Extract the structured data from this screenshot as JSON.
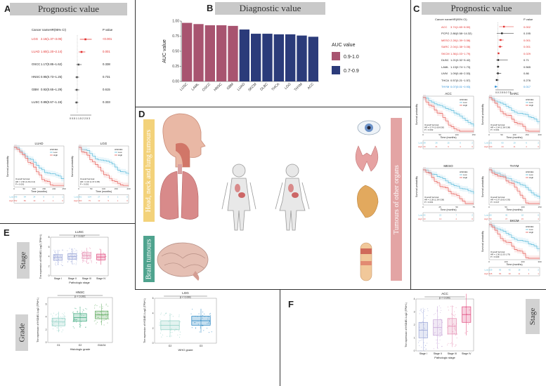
{
  "panels": {
    "a": {
      "letter": "A",
      "title": "Prognostic value"
    },
    "b": {
      "letter": "B",
      "title": "Diagnostic value"
    },
    "c": {
      "letter": "C",
      "title": "Prognostic value"
    },
    "d": {
      "letter": "D",
      "left_tag": "Head, neck and lung tumours",
      "brain_tag": "Brain tumours",
      "right_tag": "Tumours of other organs"
    },
    "e": {
      "letter": "E",
      "stage_tag": "Stage",
      "grade_tag": "Grade"
    },
    "f": {
      "letter": "F",
      "stage_tag": "Stage"
    }
  },
  "forest_a": {
    "col_name": "Cancer name",
    "col_hr": "HR(95% CI)",
    "col_p": "P value",
    "rows": [
      {
        "name": "LGG",
        "hr": "2.16(1.37~3.05)",
        "p": "<0.001",
        "sig": true
      },
      {
        "name": "LUAD",
        "hr": "1.60(1.20~2.14)",
        "p": "0.001",
        "sig": true
      },
      {
        "name": "OSCC",
        "hr": "1.17(0.85~1.62)",
        "p": "0.338",
        "sig": false
      },
      {
        "name": "HNSC",
        "hr": "0.95(0.73~1.25)",
        "p": "0.731",
        "sig": false
      },
      {
        "name": "GBM",
        "hr": "0.92(0.65~1.29)",
        "p": "0.615",
        "sig": false
      },
      {
        "name": "LUSC",
        "hr": "0.89(0.67~1.15)",
        "p": "0.333",
        "sig": false
      }
    ],
    "axis": "0 0.5 1 1.5 2 2.5 3"
  },
  "forest_c": {
    "col_name": "Cancer name",
    "col_hr": "HR(95% CI)",
    "col_p": "P value",
    "rows": [
      {
        "name": "ACC",
        "hr": "3.74(1.65~8.50)",
        "p": "0.002",
        "color": "red"
      },
      {
        "name": "PCPG",
        "hr": "2.86(0.58~14.32)",
        "p": "0.195",
        "color": "black"
      },
      {
        "name": "MESO",
        "hr": "2.28(1.39~3.58)",
        "p": "0.001",
        "color": "red"
      },
      {
        "name": "SARC",
        "hr": "2.04(1.38~3.08)",
        "p": "0.001",
        "color": "red"
      },
      {
        "name": "SKCM",
        "hr": "1.36(1.03~1.79)",
        "p": "0.029",
        "color": "red"
      },
      {
        "name": "DLBC",
        "hr": "1.21(0.32~5.42)",
        "p": "0.71",
        "color": "black"
      },
      {
        "name": "LAML",
        "hr": "1.13(0.74~1.73)",
        "p": "0.565",
        "color": "black"
      },
      {
        "name": "UVM",
        "hr": "1.09(0.46~2.53)",
        "p": "0.86",
        "color": "black"
      },
      {
        "name": "THCA",
        "hr": "0.57(0.21~1.57)",
        "p": "0.276",
        "color": "black"
      },
      {
        "name": "THYM",
        "hr": "0.07(0.01~0.93)",
        "p": "0.017",
        "color": "blue"
      }
    ],
    "axis": "0.0 2.5 5.0 7.5"
  },
  "km_plots": [
    {
      "id": "luad",
      "title": "LUAD",
      "ylab": "Survival probability",
      "xlab": "Time (months)",
      "legend_title": "HSD4E1",
      "low": "Low",
      "high": "High",
      "stats": "Overall Survival\nHR = 1.60 (1.20-2.14)\nP = 0.001",
      "risk_low": [
        "249",
        "94",
        "24",
        "9",
        "2",
        "1"
      ],
      "risk_high": [
        "252",
        "80",
        "13",
        "4",
        "1",
        "0"
      ],
      "xticks": [
        "0",
        "50",
        "100",
        "150",
        "200",
        "250"
      ]
    },
    {
      "id": "lgg",
      "title": "LGG",
      "ylab": "Survival probability",
      "xlab": "Time (months)",
      "legend_title": "HSD4E1",
      "low": "Low",
      "high": "High",
      "stats": "Overall Survival\nHR = 2.16 (1.37-3.05)\nP < 0.001",
      "risk_low": [
        "261",
        "104",
        "27",
        "8",
        "1",
        "0"
      ],
      "risk_high": [
        "260",
        "75",
        "12",
        "5",
        "1",
        "0"
      ],
      "xticks": [
        "0",
        "50",
        "100",
        "150",
        "200"
      ]
    },
    {
      "id": "acc",
      "title": "ACC",
      "ylab": "Survival probability",
      "xlab": "Time (months)",
      "legend_title": "HSD4E1",
      "low": "Low",
      "high": "High",
      "stats": "Overall Survival\nHR = 3.74 (1.65-8.50)\nP = 0.002",
      "risk_low": [
        "39",
        "26",
        "15",
        "6",
        "2"
      ],
      "risk_high": [
        "40",
        "21",
        "9",
        "3",
        "0"
      ],
      "xticks": [
        "0",
        "50",
        "100",
        "150"
      ]
    },
    {
      "id": "sarc",
      "title": "SARC",
      "ylab": "Survival probability",
      "xlab": "Time (months)",
      "legend_title": "HSD4E1",
      "low": "Low",
      "high": "High",
      "stats": "Overall Survival\nHR = 2.04 (1.38-3.08)\nP = 0.001",
      "risk_low": [
        "131",
        "60",
        "19",
        "6",
        "2"
      ],
      "risk_high": [
        "130",
        "44",
        "11",
        "4",
        "0"
      ],
      "xticks": [
        "0",
        "50",
        "100",
        "150",
        "200"
      ]
    },
    {
      "id": "meso",
      "title": "MESO",
      "ylab": "Survival probability",
      "xlab": "Time (months)",
      "legend_title": "HSD4E1",
      "low": "Low",
      "high": "High",
      "stats": "Overall Survival\nHR = 2.28 (1.39-3.58)\nP = 0.001",
      "risk_low": [
        "42",
        "22",
        "7",
        "2"
      ],
      "risk_high": [
        "43",
        "13",
        "2",
        "0"
      ],
      "xticks": [
        "0",
        "25",
        "50",
        "75"
      ]
    },
    {
      "id": "thym",
      "title": "THYM",
      "ylab": "Survival probability",
      "xlab": "Time (months)",
      "legend_title": "HSD4E1",
      "low": "Low",
      "high": "High",
      "stats": "Overall Survival\nHR = 0.07 (0.01-0.93)\nP = 0.017",
      "risk_low": [
        "60",
        "40",
        "18",
        "6"
      ],
      "risk_high": [
        "59",
        "37",
        "15",
        "4"
      ],
      "xticks": [
        "0",
        "50",
        "100",
        "150"
      ]
    },
    {
      "id": "skcm",
      "title": "SKCM",
      "ylab": "Survival probability",
      "xlab": "Time (months)",
      "legend_title": "HSD4E1",
      "low": "Low",
      "high": "High",
      "stats": "Overall Survival\nHR = 1.36 (1.03-1.79)\nP = 0.029",
      "risk_low": [
        "229",
        "95",
        "42",
        "18",
        "6",
        "2"
      ],
      "risk_high": [
        "228",
        "83",
        "30",
        "11",
        "3",
        "1"
      ],
      "xticks": [
        "0",
        "100",
        "200",
        "300"
      ]
    }
  ],
  "chart_data": [
    {
      "type": "bar",
      "title": "Diagnostic value",
      "ylabel": "AUC value",
      "xlabel": "",
      "ylim": [
        0,
        1.0
      ],
      "yticks": [
        "0.00",
        "0.25",
        "0.50",
        "0.75",
        "1.00"
      ],
      "categories": [
        "LUSC",
        "LAML",
        "OSCC",
        "HNSC",
        "GBM",
        "LUAD",
        "SKCM",
        "DLBC",
        "THCA",
        "LGG",
        "THYM",
        "ACC"
      ],
      "values": [
        0.97,
        0.95,
        0.93,
        0.93,
        0.92,
        0.86,
        0.79,
        0.79,
        0.78,
        0.78,
        0.76,
        0.74
      ],
      "legend_title": "AUC value",
      "legend": [
        {
          "label": "0.9-1.0",
          "color": "#a85470"
        },
        {
          "label": "0.7-0.9",
          "color": "#2b3b7a"
        }
      ],
      "legend_position": "right"
    },
    {
      "type": "box",
      "title": "LUSC",
      "annotation": "p = 0.027",
      "ylabel": "The expression of HSD4E1 Log2 (TPM+1)",
      "xlabel": "Pathologic stage",
      "categories": [
        "Stage I",
        "Stage II",
        "Stage III",
        "Stage IV"
      ],
      "medians": [
        3.8,
        4.0,
        4.2,
        3.9
      ],
      "colors": [
        "#9aa6d8",
        "#9aa6d8",
        "#e58bb0",
        "#e0457a"
      ],
      "ylim": [
        0,
        8
      ]
    },
    {
      "type": "box",
      "title": "HNSC",
      "annotation": "p < 0.001",
      "ylabel": "The expression of HSD4E1 Log2 (TPM+1)",
      "xlabel": "Histologic grade",
      "categories": [
        "G1",
        "G2",
        "G3&G4"
      ],
      "medians": [
        3.2,
        3.9,
        4.3
      ],
      "colors": [
        "#8fd0c4",
        "#3da87d",
        "#5aa85a"
      ],
      "ylim": [
        0,
        7
      ]
    },
    {
      "type": "box",
      "title": "LGG",
      "annotation": "p < 0.001",
      "ylabel": "The expression of HSD4E1 Log2 (TPM+1)",
      "xlabel": "WHO grade",
      "categories": [
        "G2",
        "G3"
      ],
      "medians": [
        2.4,
        3.0
      ],
      "colors": [
        "#8fd0c4",
        "#1d7fbf"
      ],
      "ylim": [
        0,
        6
      ]
    },
    {
      "type": "box",
      "title": "ACC",
      "annotation": "p < 0.001",
      "ylabel": "The expression of HSD4E1 Log2 (TPM+1)",
      "xlabel": "Pathologic stage",
      "categories": [
        "Stage I",
        "Stage II",
        "Stage III",
        "Stage IV"
      ],
      "medians": [
        1.6,
        1.8,
        1.9,
        2.8
      ],
      "colors": [
        "#9aa6d8",
        "#c7a6d8",
        "#e58bb0",
        "#e0457a"
      ],
      "ylim": [
        0,
        4
      ]
    }
  ]
}
